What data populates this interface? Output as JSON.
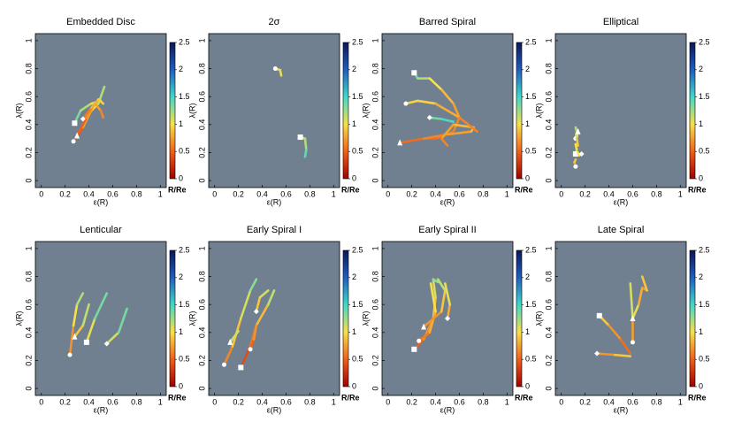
{
  "chart_data": [
    {
      "type": "line",
      "title": "Embedded Disc",
      "xlabel": "ε(R)",
      "ylabel": "λ(R)",
      "colorbar_label": "R/Re",
      "xlim": [
        -0.05,
        1.05
      ],
      "ylim": [
        -0.05,
        1.05
      ],
      "xticks": [
        0,
        0.2,
        0.4,
        0.6,
        0.8,
        1
      ],
      "yticks": [
        0,
        0.2,
        0.4,
        0.6,
        0.8,
        1
      ],
      "clim": [
        0,
        2.5
      ],
      "cticks": [
        0,
        0.5,
        1,
        1.5,
        2,
        2.5
      ],
      "colormap": [
        "#a00000",
        "#f06018",
        "#f8e048",
        "#40d8c8",
        "#1e5ec0",
        "#0c1658"
      ],
      "tracks": [
        {
          "marker": "square",
          "x": [
            0.28,
            0.33,
            0.42,
            0.5
          ],
          "y": [
            0.41,
            0.5,
            0.55,
            0.57
          ],
          "r": [
            1.4,
            1.3,
            1.1,
            1.0
          ]
        },
        {
          "marker": "circle",
          "x": [
            0.27,
            0.35,
            0.42,
            0.48,
            0.53
          ],
          "y": [
            0.28,
            0.38,
            0.5,
            0.55,
            0.67
          ],
          "r": [
            0.3,
            0.6,
            0.9,
            1.1,
            1.3
          ]
        },
        {
          "marker": "triangle",
          "x": [
            0.3,
            0.38,
            0.45,
            0.5,
            0.52
          ],
          "y": [
            0.32,
            0.45,
            0.55,
            0.5,
            0.45
          ],
          "r": [
            0.4,
            0.6,
            0.8,
            0.7,
            0.6
          ]
        },
        {
          "marker": "diamond",
          "x": [
            0.35,
            0.42,
            0.48,
            0.52
          ],
          "y": [
            0.44,
            0.52,
            0.58,
            0.55
          ],
          "r": [
            0.5,
            0.7,
            0.9,
            1.0
          ]
        }
      ]
    },
    {
      "type": "line",
      "title": "2σ",
      "xlabel": "ε(R)",
      "ylabel": "λ(R)",
      "colorbar_label": "R/Re",
      "xlim": [
        -0.05,
        1.05
      ],
      "ylim": [
        -0.05,
        1.05
      ],
      "xticks": [
        0,
        0.2,
        0.4,
        0.6,
        0.8,
        1
      ],
      "yticks": [
        0,
        0.2,
        0.4,
        0.6,
        0.8,
        1
      ],
      "clim": [
        0,
        2.5
      ],
      "cticks": [
        0,
        0.5,
        1,
        1.5,
        2,
        2.5
      ],
      "colormap": [
        "#a00000",
        "#f06018",
        "#f8e048",
        "#40d8c8",
        "#1e5ec0",
        "#0c1658"
      ],
      "tracks": [
        {
          "marker": "circle",
          "x": [
            0.51,
            0.55,
            0.56
          ],
          "y": [
            0.8,
            0.79,
            0.75
          ],
          "r": [
            0.9,
            1.0,
            1.1
          ]
        },
        {
          "marker": "square",
          "x": [
            0.72,
            0.76,
            0.77,
            0.76
          ],
          "y": [
            0.31,
            0.3,
            0.22,
            0.17
          ],
          "r": [
            0.8,
            1.1,
            1.3,
            1.5
          ]
        }
      ]
    },
    {
      "type": "line",
      "title": "Barred Spiral",
      "xlabel": "ε(R)",
      "ylabel": "λ(R)",
      "colorbar_label": "R/Re",
      "xlim": [
        -0.05,
        1.05
      ],
      "ylim": [
        -0.05,
        1.05
      ],
      "xticks": [
        0,
        0.2,
        0.4,
        0.6,
        0.8,
        1
      ],
      "yticks": [
        0,
        0.2,
        0.4,
        0.6,
        0.8,
        1
      ],
      "clim": [
        0,
        2.5
      ],
      "cticks": [
        0,
        0.5,
        1,
        1.5,
        2,
        2.5
      ],
      "colormap": [
        "#a00000",
        "#f06018",
        "#f8e048",
        "#40d8c8",
        "#1e5ec0",
        "#0c1658"
      ],
      "tracks": [
        {
          "marker": "square",
          "x": [
            0.22,
            0.25,
            0.35,
            0.45,
            0.55,
            0.6,
            0.55,
            0.4,
            0.3
          ],
          "y": [
            0.77,
            0.73,
            0.73,
            0.65,
            0.55,
            0.45,
            0.35,
            0.3,
            0.3
          ],
          "r": [
            1.5,
            1.3,
            1.1,
            0.9,
            0.8,
            0.7,
            0.6,
            0.6,
            0.5
          ]
        },
        {
          "marker": "triangle",
          "x": [
            0.1,
            0.3,
            0.5,
            0.7,
            0.72,
            0.55,
            0.45,
            0.5
          ],
          "y": [
            0.27,
            0.3,
            0.33,
            0.35,
            0.38,
            0.4,
            0.3,
            0.25
          ],
          "r": [
            0.5,
            0.6,
            0.7,
            0.8,
            0.9,
            0.8,
            0.7,
            0.6
          ]
        },
        {
          "marker": "circle",
          "x": [
            0.15,
            0.25,
            0.4,
            0.6,
            0.75
          ],
          "y": [
            0.55,
            0.57,
            0.55,
            0.45,
            0.35
          ],
          "r": [
            0.9,
            1.0,
            0.9,
            0.7,
            0.6
          ]
        },
        {
          "marker": "diamond",
          "x": [
            0.35,
            0.45,
            0.55
          ],
          "y": [
            0.45,
            0.44,
            0.42
          ],
          "r": [
            1.3,
            1.4,
            1.5
          ]
        }
      ]
    },
    {
      "type": "line",
      "title": "Elliptical",
      "xlabel": "ε(R)",
      "ylabel": "λ(R)",
      "colorbar_label": "R/Re",
      "xlim": [
        -0.05,
        1.05
      ],
      "ylim": [
        -0.05,
        1.05
      ],
      "xticks": [
        0,
        0.2,
        0.4,
        0.6,
        0.8,
        1
      ],
      "yticks": [
        0,
        0.2,
        0.4,
        0.6,
        0.8,
        1
      ],
      "clim": [
        0,
        2.5
      ],
      "cticks": [
        0,
        0.5,
        1,
        1.5,
        2,
        2.5
      ],
      "colormap": [
        "#a00000",
        "#f06018",
        "#f8e048",
        "#40d8c8",
        "#1e5ec0",
        "#0c1658"
      ],
      "tracks": [
        {
          "marker": "circle",
          "x": [
            0.12,
            0.13,
            0.12
          ],
          "y": [
            0.3,
            0.35,
            0.38
          ],
          "r": [
            0.9,
            1.1,
            1.3
          ]
        },
        {
          "marker": "triangle",
          "x": [
            0.14,
            0.13,
            0.14
          ],
          "y": [
            0.35,
            0.3,
            0.25
          ],
          "r": [
            1.2,
            1.0,
            0.8
          ]
        },
        {
          "marker": "square",
          "x": [
            0.12,
            0.13,
            0.12
          ],
          "y": [
            0.19,
            0.22,
            0.26
          ],
          "r": [
            1.3,
            1.1,
            0.9
          ]
        },
        {
          "marker": "diamond",
          "x": [
            0.17,
            0.15,
            0.14
          ],
          "y": [
            0.19,
            0.18,
            0.2
          ],
          "r": [
            0.7,
            0.9,
            1.1
          ]
        },
        {
          "marker": "circle",
          "x": [
            0.12,
            0.11,
            0.12
          ],
          "y": [
            0.1,
            0.13,
            0.15
          ],
          "r": [
            0.6,
            0.8,
            1.0
          ]
        }
      ]
    },
    {
      "type": "line",
      "title": "Lenticular",
      "xlabel": "ε(R)",
      "ylabel": "λ(R)",
      "colorbar_label": "R/Re",
      "xlim": [
        -0.05,
        1.05
      ],
      "ylim": [
        -0.05,
        1.05
      ],
      "xticks": [
        0,
        0.2,
        0.4,
        0.6,
        0.8,
        1
      ],
      "yticks": [
        0,
        0.2,
        0.4,
        0.6,
        0.8,
        1
      ],
      "clim": [
        0,
        2.5
      ],
      "cticks": [
        0,
        0.5,
        1,
        1.5,
        2,
        2.5
      ],
      "colormap": [
        "#a00000",
        "#f06018",
        "#f8e048",
        "#40d8c8",
        "#1e5ec0",
        "#0c1658"
      ],
      "tracks": [
        {
          "marker": "circle",
          "x": [
            0.24,
            0.27,
            0.3,
            0.35
          ],
          "y": [
            0.24,
            0.45,
            0.6,
            0.68
          ],
          "r": [
            0.5,
            0.9,
            1.1,
            1.3
          ]
        },
        {
          "marker": "triangle",
          "x": [
            0.28,
            0.35,
            0.4
          ],
          "y": [
            0.37,
            0.45,
            0.6
          ],
          "r": [
            0.8,
            1.0,
            1.3
          ]
        },
        {
          "marker": "square",
          "x": [
            0.38,
            0.45,
            0.55
          ],
          "y": [
            0.33,
            0.5,
            0.68
          ],
          "r": [
            0.9,
            1.2,
            1.5
          ]
        },
        {
          "marker": "diamond",
          "x": [
            0.55,
            0.65,
            0.72
          ],
          "y": [
            0.32,
            0.4,
            0.57
          ],
          "r": [
            1.0,
            1.2,
            1.5
          ]
        }
      ]
    },
    {
      "type": "line",
      "title": "Early Spiral I",
      "xlabel": "ε(R)",
      "ylabel": "λ(R)",
      "colorbar_label": "R/Re",
      "xlim": [
        -0.05,
        1.05
      ],
      "ylim": [
        -0.05,
        1.05
      ],
      "xticks": [
        0,
        0.2,
        0.4,
        0.6,
        0.8,
        1
      ],
      "yticks": [
        0,
        0.2,
        0.4,
        0.6,
        0.8,
        1
      ],
      "clim": [
        0,
        2.5
      ],
      "cticks": [
        0,
        0.5,
        1,
        1.5,
        2,
        2.5
      ],
      "colormap": [
        "#a00000",
        "#f06018",
        "#f8e048",
        "#40d8c8",
        "#1e5ec0",
        "#0c1658"
      ],
      "tracks": [
        {
          "marker": "circle",
          "x": [
            0.08,
            0.15,
            0.22,
            0.3,
            0.35
          ],
          "y": [
            0.17,
            0.3,
            0.5,
            0.7,
            0.78
          ],
          "r": [
            0.5,
            0.8,
            1.0,
            1.2,
            1.4
          ]
        },
        {
          "marker": "square",
          "x": [
            0.22,
            0.3,
            0.35,
            0.45,
            0.5
          ],
          "y": [
            0.15,
            0.3,
            0.45,
            0.6,
            0.7
          ],
          "r": [
            0.3,
            0.5,
            0.7,
            1.0,
            1.3
          ]
        },
        {
          "marker": "triangle",
          "x": [
            0.13,
            0.2
          ],
          "y": [
            0.33,
            0.41
          ],
          "r": [
            1.2,
            1.0
          ]
        },
        {
          "marker": "diamond",
          "x": [
            0.35,
            0.38,
            0.45
          ],
          "y": [
            0.55,
            0.65,
            0.7
          ],
          "r": [
            0.8,
            1.0,
            1.2
          ]
        },
        {
          "marker": "circle",
          "x": [
            0.3,
            0.33,
            0.35
          ],
          "y": [
            0.28,
            0.35,
            0.45
          ],
          "r": [
            0.4,
            0.6,
            0.8
          ]
        }
      ]
    },
    {
      "type": "line",
      "title": "Early Spiral II",
      "xlabel": "ε(R)",
      "ylabel": "λ(R)",
      "colorbar_label": "R/Re",
      "xlim": [
        -0.05,
        1.05
      ],
      "ylim": [
        -0.05,
        1.05
      ],
      "xticks": [
        0,
        0.2,
        0.4,
        0.6,
        0.8,
        1
      ],
      "yticks": [
        0,
        0.2,
        0.4,
        0.6,
        0.8,
        1
      ],
      "clim": [
        0,
        2.5
      ],
      "cticks": [
        0,
        0.5,
        1,
        1.5,
        2,
        2.5
      ],
      "colormap": [
        "#a00000",
        "#f06018",
        "#f8e048",
        "#40d8c8",
        "#1e5ec0",
        "#0c1658"
      ],
      "tracks": [
        {
          "marker": "square",
          "x": [
            0.22,
            0.3,
            0.38,
            0.4,
            0.38,
            0.42
          ],
          "y": [
            0.28,
            0.35,
            0.5,
            0.65,
            0.78,
            0.76
          ],
          "r": [
            0.4,
            0.6,
            0.8,
            1.0,
            1.2,
            1.4
          ]
        },
        {
          "marker": "circle",
          "x": [
            0.26,
            0.35,
            0.4,
            0.36
          ],
          "y": [
            0.34,
            0.4,
            0.55,
            0.75
          ],
          "r": [
            0.5,
            0.7,
            0.9,
            1.1
          ]
        },
        {
          "marker": "triangle",
          "x": [
            0.3,
            0.45,
            0.48,
            0.42
          ],
          "y": [
            0.44,
            0.55,
            0.7,
            0.78
          ],
          "r": [
            0.6,
            0.8,
            1.0,
            1.3
          ]
        },
        {
          "marker": "diamond",
          "x": [
            0.5,
            0.52,
            0.48
          ],
          "y": [
            0.5,
            0.6,
            0.75
          ],
          "r": [
            0.7,
            0.9,
            1.2
          ]
        }
      ]
    },
    {
      "type": "line",
      "title": "Late Spiral",
      "xlabel": "ε(R)",
      "ylabel": "λ(R)",
      "colorbar_label": "R/Re",
      "xlim": [
        -0.05,
        1.05
      ],
      "ylim": [
        -0.05,
        1.05
      ],
      "xticks": [
        0,
        0.2,
        0.4,
        0.6,
        0.8,
        1
      ],
      "yticks": [
        0,
        0.2,
        0.4,
        0.6,
        0.8,
        1
      ],
      "clim": [
        0,
        2.5
      ],
      "cticks": [
        0,
        0.5,
        1,
        1.5,
        2,
        2.5
      ],
      "colormap": [
        "#a00000",
        "#f06018",
        "#f8e048",
        "#40d8c8",
        "#1e5ec0",
        "#0c1658"
      ],
      "tracks": [
        {
          "marker": "diamond",
          "x": [
            0.3,
            0.45,
            0.58
          ],
          "y": [
            0.25,
            0.24,
            0.23
          ],
          "r": [
            0.6,
            0.8,
            1.0
          ]
        },
        {
          "marker": "square",
          "x": [
            0.32,
            0.4,
            0.5,
            0.58
          ],
          "y": [
            0.52,
            0.45,
            0.35,
            0.25
          ],
          "r": [
            1.0,
            0.8,
            0.6,
            0.5
          ]
        },
        {
          "marker": "circle",
          "x": [
            0.6,
            0.6,
            0.58
          ],
          "y": [
            0.33,
            0.5,
            0.75
          ],
          "r": [
            0.6,
            0.9,
            1.3
          ]
        },
        {
          "marker": "triangle",
          "x": [
            0.6,
            0.65,
            0.68,
            0.72,
            0.68
          ],
          "y": [
            0.5,
            0.6,
            0.72,
            0.7,
            0.8
          ],
          "r": [
            1.2,
            0.9,
            0.7,
            0.8,
            1.0
          ]
        }
      ]
    }
  ]
}
